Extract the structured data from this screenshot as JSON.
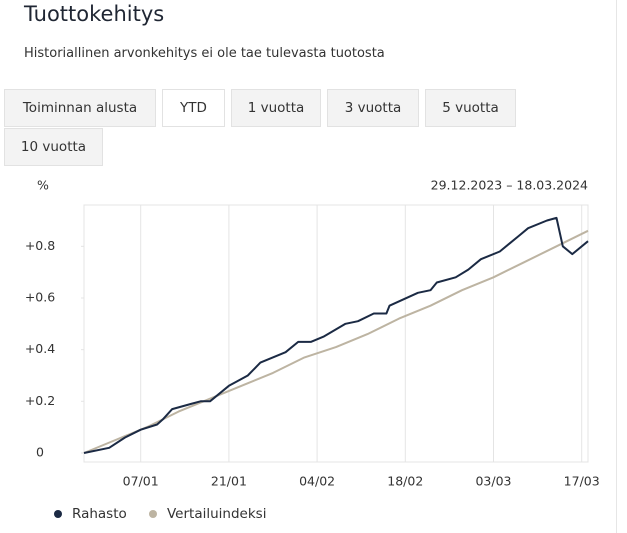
{
  "header": {
    "title": "Tuottokehitys",
    "subtitle": "Historiallinen arvonkehitys ei ole tae tulevasta tuotosta"
  },
  "tabs": [
    "Toiminnan alusta",
    "YTD",
    "1 vuotta",
    "3 vuotta",
    "5 vuotta",
    "10 vuotta"
  ],
  "selected_tab": 1,
  "chart_data": {
    "type": "line",
    "ylabel": "%",
    "date_range": "29.12.2023 – 18.03.2024",
    "xlim": [
      0,
      80
    ],
    "xticks": [
      {
        "value": 9,
        "label": "07/01"
      },
      {
        "value": 23,
        "label": "21/01"
      },
      {
        "value": 37,
        "label": "04/02"
      },
      {
        "value": 51,
        "label": "18/02"
      },
      {
        "value": 65,
        "label": "03/03"
      },
      {
        "value": 79,
        "label": "17/03"
      }
    ],
    "ylim": [
      -0.035,
      0.96
    ],
    "yticks": [
      0,
      {
        "value": 0.2,
        "label": "+0.2"
      },
      {
        "value": 0.4,
        "label": "+0.4"
      },
      {
        "value": 0.6,
        "label": "+0.6"
      },
      {
        "value": 0.8,
        "label": "+0.8"
      }
    ],
    "grid": true,
    "series": [
      {
        "name": "Rahasto",
        "color": "#1b2a44",
        "x": [
          0,
          4,
          6.5,
          9,
          11.6,
          12.5,
          14,
          17,
          18.5,
          20,
          23,
          26,
          28,
          32,
          34,
          36,
          38,
          41.5,
          43.5,
          46,
          48,
          48.5,
          53,
          55,
          56,
          59,
          61,
          63,
          66,
          67.5,
          69,
          70.5,
          73.5,
          75,
          76,
          77.5,
          80
        ],
        "values": [
          0,
          0.02,
          0.06,
          0.09,
          0.11,
          0.13,
          0.17,
          0.19,
          0.2,
          0.2,
          0.26,
          0.3,
          0.35,
          0.39,
          0.43,
          0.43,
          0.45,
          0.5,
          0.51,
          0.54,
          0.54,
          0.57,
          0.62,
          0.63,
          0.66,
          0.68,
          0.71,
          0.75,
          0.78,
          0.81,
          0.84,
          0.87,
          0.9,
          0.91,
          0.8,
          0.77,
          0.82
        ]
      },
      {
        "name": "Vertailuindeksi",
        "color": "#bdb4a2",
        "x": [
          0,
          5,
          10,
          15,
          20,
          25,
          30,
          35,
          40,
          45,
          50,
          55,
          60,
          65,
          70,
          75,
          80
        ],
        "values": [
          0,
          0.05,
          0.1,
          0.16,
          0.21,
          0.26,
          0.31,
          0.37,
          0.41,
          0.46,
          0.52,
          0.57,
          0.63,
          0.68,
          0.74,
          0.8,
          0.86
        ]
      }
    ]
  }
}
